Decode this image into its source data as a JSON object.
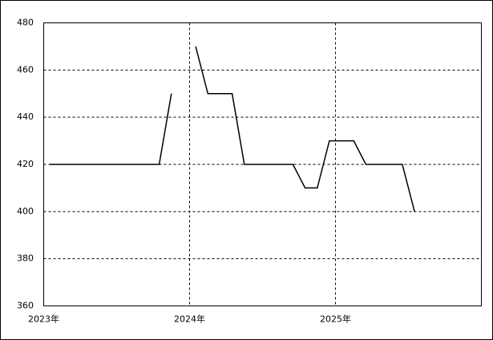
{
  "chart_data": {
    "type": "line",
    "categories": [
      "2023年",
      null,
      null,
      null,
      null,
      null,
      null,
      null,
      null,
      null,
      null,
      null,
      "2024年",
      null,
      null,
      null,
      null,
      null,
      null,
      null,
      null,
      null,
      null,
      null,
      "2025年",
      null,
      null,
      null,
      null,
      null,
      null,
      null,
      null,
      null,
      null,
      null
    ],
    "series": [
      {
        "color": "#000000",
        "values": [
          420,
          420,
          420,
          420,
          420,
          420,
          420,
          420,
          420,
          420,
          450,
          null,
          470,
          450,
          450,
          450,
          420,
          420,
          420,
          420,
          420,
          410,
          410,
          430,
          430,
          430,
          420,
          420,
          420,
          420,
          400,
          null,
          null,
          null,
          null,
          null
        ]
      }
    ],
    "ylim": [
      360,
      480
    ],
    "yticks": [
      360,
      380,
      400,
      420,
      440,
      460,
      480
    ],
    "grid": true
  }
}
